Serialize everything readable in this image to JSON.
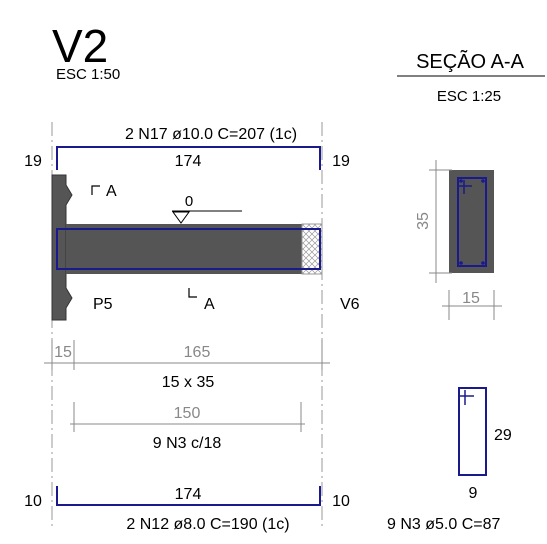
{
  "beam": {
    "title": "V2",
    "scale": "ESC 1:50",
    "top_bar": {
      "spec": "2 N17 ø10.0  C=207  (1c)",
      "length": "174",
      "left_hook": "19",
      "right_hook": "19"
    },
    "section_cut": "A",
    "level": "0",
    "left_support": "P5",
    "right_support": "V6",
    "dims": {
      "support_width": "15",
      "span": "165",
      "section": "15 x 35"
    },
    "stirrups": {
      "length": "150",
      "spec": "9 N3 c/18"
    },
    "bottom_bar": {
      "spec": "2 N12 ø8.0  C=190  (1c)",
      "length": "174",
      "left_hook": "10",
      "right_hook": "10"
    }
  },
  "section": {
    "title": "SEÇÃO A-A",
    "scale": "ESC 1:25",
    "height": "35",
    "width": "15"
  },
  "stirrup_detail": {
    "height": "29",
    "width": "9",
    "spec": "9 N3 ø5.0  C=87"
  },
  "colors": {
    "rebar": "#1a1a8c",
    "concrete": "#555555",
    "dim_gray": "#888888"
  }
}
